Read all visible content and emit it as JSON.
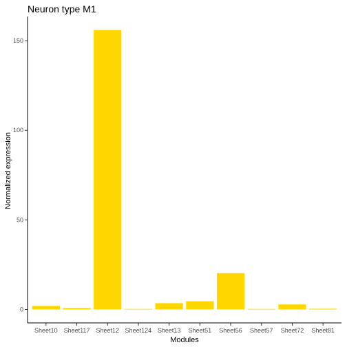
{
  "chart_data": {
    "type": "bar",
    "title": "Neuron type M1",
    "xlabel": "Modules",
    "ylabel": "Normalized expression",
    "categories": [
      "Sheet10",
      "Sheet117",
      "Sheet12",
      "Sheet124",
      "Sheet13",
      "Sheet51",
      "Sheet56",
      "Sheet57",
      "Sheet72",
      "Sheet81"
    ],
    "values": [
      2.0,
      0.8,
      156.0,
      0.3,
      3.5,
      4.6,
      20.3,
      0.3,
      2.8,
      0.4
    ],
    "ylim": [
      -7.5,
      163.5
    ],
    "yticks": [
      0,
      50,
      100,
      150
    ],
    "bar_color": "#FFD700",
    "grid": false,
    "legend": "none"
  }
}
